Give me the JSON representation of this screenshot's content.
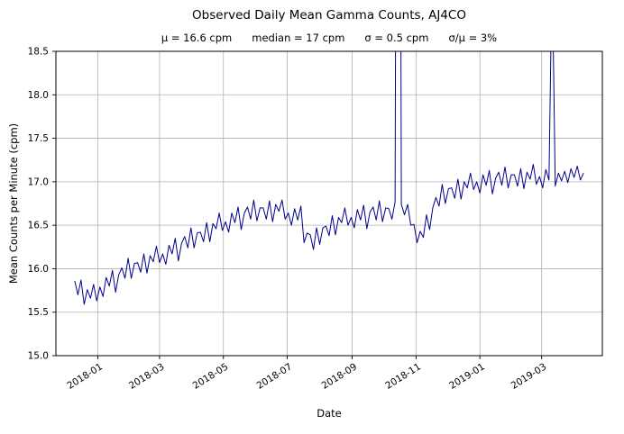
{
  "chart_data": {
    "type": "line",
    "title": "Observed Daily Mean Gamma Counts, AJ4CO",
    "stats": {
      "mu": "μ = 16.6 cpm",
      "median": "median = 17 cpm",
      "sigma": "σ = 0.5 cpm",
      "ratio": "σ/μ = 3%"
    },
    "xlabel": "Date",
    "ylabel": "Mean Counts per Minute (cpm)",
    "ylim": [
      15.0,
      18.5
    ],
    "yticks": [
      15.0,
      15.5,
      16.0,
      16.5,
      17.0,
      17.5,
      18.0,
      18.5
    ],
    "ytick_labels": [
      "15.0",
      "15.5",
      "16.0",
      "16.5",
      "17.0",
      "17.5",
      "18.0",
      "18.5"
    ],
    "xtick_labels": [
      "2018-01",
      "2018-03",
      "2018-05",
      "2018-07",
      "2018-09",
      "2018-11",
      "2019-01",
      "2019-03"
    ],
    "xlim": [
      "2017-11-22",
      "2019-04-28"
    ],
    "grid": true,
    "legend": "none",
    "line_color": "#00008b",
    "grid_color": "#b0b0b0",
    "frame_color": "#000000",
    "background": "#ffffff",
    "series": [
      {
        "name": "AJ4CO daily mean gamma counts",
        "start_date": "2017-12-10",
        "step_days": 3,
        "values": [
          15.86,
          15.7,
          15.87,
          15.59,
          15.76,
          15.66,
          15.82,
          15.63,
          15.79,
          15.68,
          15.9,
          15.8,
          15.98,
          15.73,
          15.93,
          16.01,
          15.89,
          16.12,
          15.89,
          16.06,
          16.07,
          15.96,
          16.17,
          15.95,
          16.15,
          16.08,
          16.26,
          16.07,
          16.17,
          16.05,
          16.27,
          16.17,
          16.35,
          16.09,
          16.29,
          16.37,
          16.24,
          16.47,
          16.24,
          16.41,
          16.42,
          16.31,
          16.53,
          16.31,
          16.52,
          16.46,
          16.64,
          16.44,
          16.54,
          16.42,
          16.64,
          16.53,
          16.71,
          16.45,
          16.64,
          16.71,
          16.57,
          16.79,
          16.55,
          16.7,
          16.7,
          16.57,
          16.78,
          16.54,
          16.74,
          16.66,
          16.79,
          16.57,
          16.64,
          16.5,
          16.69,
          16.56,
          16.72,
          16.3,
          16.41,
          16.39,
          16.22,
          16.47,
          16.28,
          16.47,
          16.49,
          16.38,
          16.61,
          16.39,
          16.59,
          16.53,
          16.7,
          16.5,
          16.59,
          16.47,
          16.68,
          16.56,
          16.73,
          16.46,
          16.65,
          16.71,
          16.56,
          16.78,
          16.54,
          16.7,
          16.69,
          16.57,
          16.77,
          30.0,
          16.74,
          16.62,
          16.74,
          16.5,
          16.51,
          16.3,
          16.43,
          16.36,
          16.62,
          16.45,
          16.7,
          16.82,
          16.72,
          16.97,
          16.75,
          16.92,
          16.93,
          16.81,
          17.03,
          16.8,
          17.0,
          16.93,
          17.1,
          16.91,
          17.0,
          16.87,
          17.08,
          16.96,
          17.13,
          16.86,
          17.04,
          17.11,
          16.96,
          17.17,
          16.93,
          17.08,
          17.08,
          16.95,
          17.15,
          16.92,
          17.11,
          17.03,
          17.2,
          16.97,
          17.06,
          16.93,
          17.14,
          17.02,
          19.5,
          16.95,
          17.1,
          17.01,
          17.12,
          16.99,
          17.15,
          17.05,
          17.18,
          17.02,
          17.1
        ]
      }
    ],
    "annotations": [
      {
        "type": "spike",
        "date": "2018-10-15",
        "note": "off-scale spike, clipped at plot top"
      },
      {
        "type": "spike",
        "date": "2019-03-12",
        "note": "off-scale spike, clipped at plot top"
      }
    ]
  }
}
